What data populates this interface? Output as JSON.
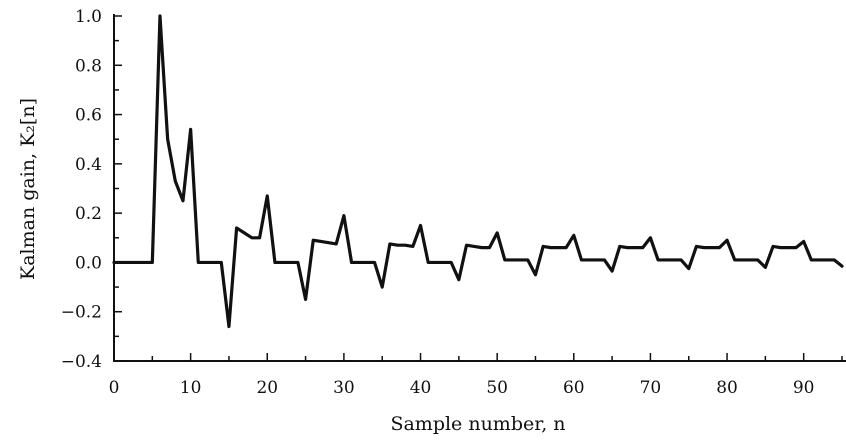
{
  "chart_data": {
    "type": "line",
    "title": "",
    "xlabel": "Sample number, n",
    "ylabel": "Kalman gain, K₂[n]",
    "xlim": [
      0,
      95
    ],
    "ylim": [
      -0.4,
      1.0
    ],
    "xticks": [
      0,
      10,
      20,
      30,
      40,
      50,
      60,
      70,
      80,
      90
    ],
    "yticks": [
      -0.4,
      -0.2,
      0.0,
      0.2,
      0.4,
      0.6,
      0.8,
      1.0
    ],
    "xtick_labels": [
      "0",
      "10",
      "20",
      "30",
      "40",
      "50",
      "60",
      "70",
      "80",
      "90"
    ],
    "ytick_labels": [
      "−0.4",
      "−0.2",
      "0.0",
      "0.2",
      "0.4",
      "0.6",
      "0.8",
      "1.0"
    ],
    "grid": false,
    "legend": "none",
    "series": [
      {
        "x": [
          0,
          1,
          2,
          3,
          4,
          5,
          6,
          7,
          8,
          9,
          10,
          11,
          12,
          13,
          14,
          15,
          16,
          17,
          18,
          19,
          20,
          21,
          22,
          23,
          24,
          25,
          26,
          27,
          28,
          29,
          30,
          31,
          32,
          33,
          34,
          35,
          36,
          37,
          38,
          39,
          40,
          41,
          42,
          43,
          44,
          45,
          46,
          47,
          48,
          49,
          50,
          51,
          52,
          53,
          54,
          55,
          56,
          57,
          58,
          59,
          60,
          61,
          62,
          63,
          64,
          65,
          66,
          67,
          68,
          69,
          70,
          71,
          72,
          73,
          74,
          75,
          76,
          77,
          78,
          79,
          80,
          81,
          82,
          83,
          84,
          85,
          86,
          87,
          88,
          89,
          90,
          91,
          92,
          93,
          94,
          95
        ],
        "values": [
          0,
          0,
          0,
          0,
          0,
          0,
          1.0,
          0.5,
          0.33,
          0.25,
          0.54,
          0,
          0,
          0,
          0,
          -0.26,
          0.14,
          0.12,
          0.1,
          0.1,
          0.27,
          0,
          0,
          0,
          0,
          -0.15,
          0.09,
          0.085,
          0.08,
          0.075,
          0.19,
          0,
          0,
          0,
          0,
          -0.1,
          0.075,
          0.07,
          0.07,
          0.065,
          0.15,
          0,
          0,
          0,
          0,
          -0.07,
          0.07,
          0.065,
          0.06,
          0.06,
          0.12,
          0.01,
          0.01,
          0.01,
          0.01,
          -0.05,
          0.065,
          0.06,
          0.06,
          0.06,
          0.11,
          0.01,
          0.01,
          0.01,
          0.01,
          -0.035,
          0.065,
          0.06,
          0.06,
          0.06,
          0.1,
          0.01,
          0.01,
          0.01,
          0.01,
          -0.025,
          0.065,
          0.06,
          0.06,
          0.06,
          0.09,
          0.01,
          0.01,
          0.01,
          0.01,
          -0.02,
          0.065,
          0.06,
          0.06,
          0.06,
          0.085,
          0.01,
          0.01,
          0.01,
          0.01,
          -0.015
        ]
      }
    ]
  }
}
